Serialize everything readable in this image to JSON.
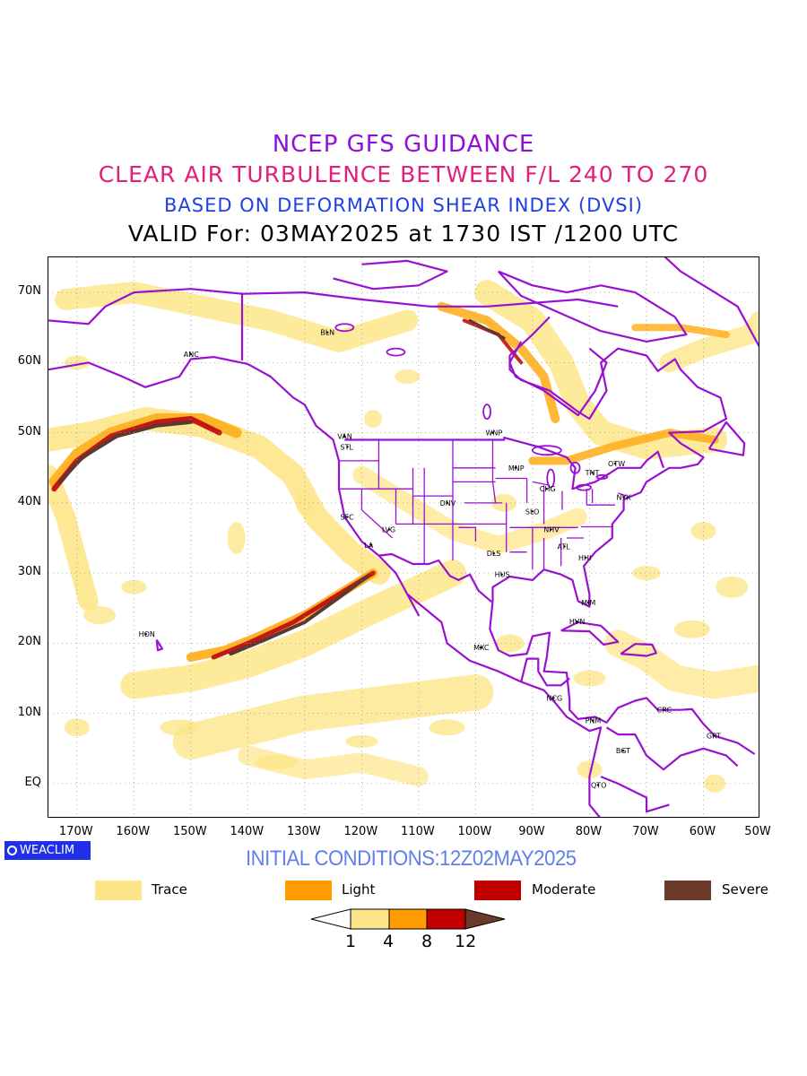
{
  "titles": {
    "line1": "NCEP GFS GUIDANCE",
    "line2": "CLEAR AIR TURBULENCE BETWEEN F/L 240 TO 270",
    "line3": "BASED ON DEFORMATION SHEAR INDEX (DVSI)",
    "line4": "VALID For: 03MAY2025 at 1730 IST /1200 UTC"
  },
  "map": {
    "lat_labels": [
      "70N",
      "60N",
      "50N",
      "40N",
      "30N",
      "20N",
      "10N",
      "EQ"
    ],
    "lon_labels": [
      "170W",
      "160W",
      "150W",
      "140W",
      "130W",
      "120W",
      "110W",
      "100W",
      "90W",
      "80W",
      "70W",
      "60W",
      "50W"
    ],
    "stations": [
      {
        "code": "ANC",
        "lon": -150,
        "lat": 61.2
      },
      {
        "code": "BLN",
        "lon": -126,
        "lat": 64.3
      },
      {
        "code": "VAN",
        "lon": -123,
        "lat": 49.5
      },
      {
        "code": "STL",
        "lon": -122.5,
        "lat": 48
      },
      {
        "code": "WNP",
        "lon": -97,
        "lat": 50
      },
      {
        "code": "MNP",
        "lon": -93,
        "lat": 45
      },
      {
        "code": "CHG",
        "lon": -87.5,
        "lat": 42
      },
      {
        "code": "TNT",
        "lon": -79.5,
        "lat": 44.3
      },
      {
        "code": "OTW",
        "lon": -75.5,
        "lat": 45.6
      },
      {
        "code": "NYK",
        "lon": -74,
        "lat": 40.8
      },
      {
        "code": "DNV",
        "lon": -105,
        "lat": 40
      },
      {
        "code": "SLO",
        "lon": -90,
        "lat": 38.8
      },
      {
        "code": "SFC",
        "lon": -122.5,
        "lat": 38
      },
      {
        "code": "LVG",
        "lon": -115.2,
        "lat": 36.2
      },
      {
        "code": "LA",
        "lon": -118.3,
        "lat": 34
      },
      {
        "code": "NHV",
        "lon": -86.8,
        "lat": 36.2
      },
      {
        "code": "ATL",
        "lon": -84.4,
        "lat": 33.8
      },
      {
        "code": "DLS",
        "lon": -96.8,
        "lat": 32.8
      },
      {
        "code": "HHI",
        "lon": -80.7,
        "lat": 32.2
      },
      {
        "code": "HUS",
        "lon": -95.4,
        "lat": 29.8
      },
      {
        "code": "MIM",
        "lon": -80.2,
        "lat": 25.8
      },
      {
        "code": "HVN",
        "lon": -82.3,
        "lat": 23.1
      },
      {
        "code": "HON",
        "lon": -157.9,
        "lat": 21.3
      },
      {
        "code": "MXC",
        "lon": -99.1,
        "lat": 19.4
      },
      {
        "code": "NCG",
        "lon": -86.3,
        "lat": 12.2
      },
      {
        "code": "PNM",
        "lon": -79.5,
        "lat": 9
      },
      {
        "code": "CRC",
        "lon": -66.9,
        "lat": 10.5
      },
      {
        "code": "GRT",
        "lon": -58.2,
        "lat": 6.8
      },
      {
        "code": "BGT",
        "lon": -74.1,
        "lat": 4.7
      },
      {
        "code": "QTO",
        "lon": -78.5,
        "lat": -0.2
      }
    ]
  },
  "logo": {
    "text": "WEACLIM"
  },
  "initial_conditions": "INITIAL CONDITIONS:12Z02MAY2025",
  "legend": [
    {
      "label": "Trace",
      "color": "#fde68a"
    },
    {
      "label": "Light",
      "color": "#ff9c00"
    },
    {
      "label": "Moderate",
      "color": "#c00000"
    },
    {
      "label": "Severe",
      "color": "#6b3a2a"
    }
  ],
  "colorbar": {
    "ticks": [
      "1",
      "4",
      "8",
      "12"
    ],
    "colors": [
      "#ffffff",
      "#fde68a",
      "#ff9c00",
      "#c00000",
      "#6b3a2a"
    ]
  },
  "colors": {
    "coastline": "#9a10d0",
    "trace": "#fde68a",
    "light": "#ffb020",
    "moderate": "#c01010",
    "severe": "#5a3a30"
  }
}
